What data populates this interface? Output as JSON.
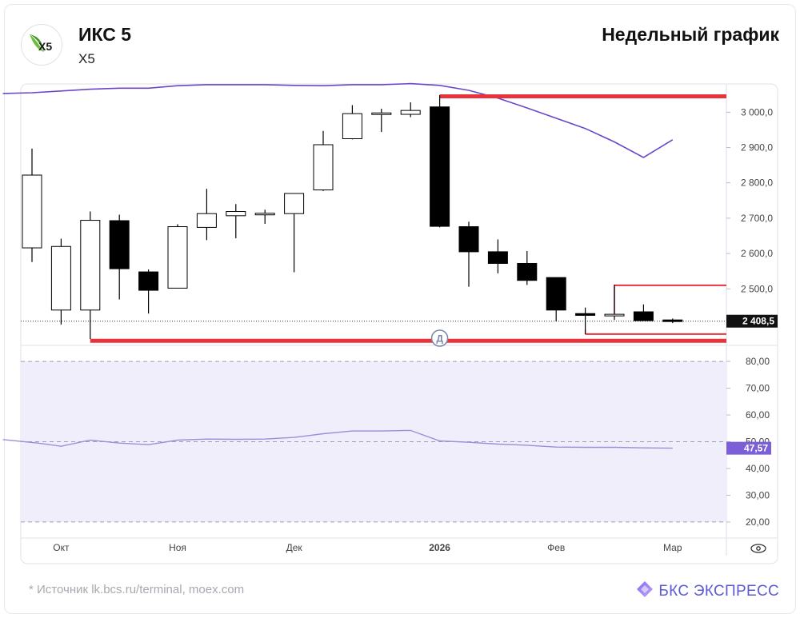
{
  "header": {
    "company": "ИКС 5",
    "ticker": "X5",
    "logo_text": "X5",
    "period": "Недельный график"
  },
  "footer": {
    "source": "* Источник lk.bcs.ru/terminal, moex.com",
    "brand": "БКС ЭКСПРЕСС"
  },
  "colors": {
    "bull": "#ffffff",
    "bear": "#000000",
    "ma": "#6a47c9",
    "level": "#e8323c",
    "rsi_fill": "#f1eefb",
    "rsi_line": "#9b8fd8",
    "rsi_badge": "#7b5fd6",
    "brand": "#5c5ad8"
  },
  "chart_data": [
    {
      "type": "candlestick",
      "title": "",
      "ylim": [
        2340,
        3080
      ],
      "y_ticks": [
        "3 000,0",
        "2 900,0",
        "2 800,0",
        "2 700,0",
        "2 600,0",
        "2 500,0"
      ],
      "y_tick_values": [
        3000,
        2900,
        2800,
        2700,
        2600,
        2500
      ],
      "x_labels": [
        "Окт",
        "Ноя",
        "Дек",
        "2026",
        "Фев",
        "Мар"
      ],
      "x_label_indices": [
        1,
        5,
        9,
        14,
        18,
        22
      ],
      "candles": [
        {
          "o": 2616,
          "h": 2897,
          "l": 2576,
          "c": 2822
        },
        {
          "o": 2440,
          "h": 2642,
          "l": 2399,
          "c": 2620
        },
        {
          "o": 2440,
          "h": 2719,
          "l": 2358,
          "c": 2694
        },
        {
          "o": 2693,
          "h": 2710,
          "l": 2470,
          "c": 2557
        },
        {
          "o": 2548,
          "h": 2555,
          "l": 2430,
          "c": 2496
        },
        {
          "o": 2502,
          "h": 2683,
          "l": 2502,
          "c": 2676
        },
        {
          "o": 2674,
          "h": 2783,
          "l": 2638,
          "c": 2713
        },
        {
          "o": 2707,
          "h": 2740,
          "l": 2643,
          "c": 2719
        },
        {
          "o": 2711,
          "h": 2724,
          "l": 2684,
          "c": 2714
        },
        {
          "o": 2713,
          "h": 2771,
          "l": 2547,
          "c": 2770
        },
        {
          "o": 2780,
          "h": 2947,
          "l": 2777,
          "c": 2908
        },
        {
          "o": 2925,
          "h": 3020,
          "l": 2923,
          "c": 2996
        },
        {
          "o": 2996,
          "h": 3010,
          "l": 2944,
          "c": 2998
        },
        {
          "o": 2994,
          "h": 3028,
          "l": 2986,
          "c": 3005
        },
        {
          "o": 3015,
          "h": 3048,
          "l": 2674,
          "c": 2677
        },
        {
          "o": 2676,
          "h": 2690,
          "l": 2506,
          "c": 2605
        },
        {
          "o": 2605,
          "h": 2640,
          "l": 2544,
          "c": 2572
        },
        {
          "o": 2572,
          "h": 2607,
          "l": 2511,
          "c": 2524
        },
        {
          "o": 2532,
          "h": 2532,
          "l": 2408,
          "c": 2440
        },
        {
          "o": 2430,
          "h": 2447,
          "l": 2372,
          "c": 2425
        },
        {
          "o": 2428,
          "h": 2512,
          "l": 2412,
          "c": 2428
        },
        {
          "o": 2435,
          "h": 2456,
          "l": 2409,
          "c": 2410
        },
        {
          "o": 2412,
          "h": 2416,
          "l": 2403,
          "c": 2409
        }
      ],
      "moving_average": [
        [
          -1,
          3053
        ],
        [
          0,
          3055
        ],
        [
          1,
          3060
        ],
        [
          2,
          3065
        ],
        [
          3,
          3068
        ],
        [
          4,
          3068
        ],
        [
          5,
          3075
        ],
        [
          6,
          3078
        ],
        [
          7,
          3078
        ],
        [
          8,
          3078
        ],
        [
          9,
          3076
        ],
        [
          10,
          3075
        ],
        [
          11,
          3078
        ],
        [
          12,
          3078
        ],
        [
          13,
          3081
        ],
        [
          14,
          3076
        ],
        [
          15,
          3062
        ],
        [
          16,
          3040
        ],
        [
          17,
          3012
        ],
        [
          18,
          2983
        ],
        [
          19,
          2954
        ],
        [
          20,
          2916
        ],
        [
          21,
          2872
        ],
        [
          22,
          2922
        ]
      ],
      "levels": [
        {
          "value": 3045,
          "from": 14,
          "to": 24.6,
          "thick": true
        },
        {
          "value": 2353,
          "from": 2,
          "to": 24.6,
          "thick": true
        },
        {
          "value": 2510,
          "from": 20,
          "to": 24.6,
          "thick": false
        },
        {
          "value": 2372,
          "from": 19,
          "to": 24.6,
          "thick": false
        }
      ],
      "marker_label": "Д",
      "marker_index": 14,
      "current_price": 2408.5,
      "current_price_label": "2 408,5"
    },
    {
      "type": "line",
      "title": "",
      "ylim": [
        14,
        86
      ],
      "y_ticks": [
        "80,00",
        "70,00",
        "60,00",
        "50,00",
        "40,00",
        "30,00",
        "20,00"
      ],
      "y_tick_values": [
        80,
        70,
        60,
        50,
        40,
        30,
        20
      ],
      "band": [
        20,
        80
      ],
      "midline": 50,
      "series": [
        {
          "values": [
            [
              -1,
              50.8
            ],
            [
              0.2,
              49.5
            ],
            [
              1,
              48.3
            ],
            [
              2,
              50.6
            ],
            [
              3,
              49.5
            ],
            [
              4,
              48.9
            ],
            [
              5,
              50.6
            ],
            [
              6,
              51.0
            ],
            [
              7,
              50.9
            ],
            [
              8,
              51.0
            ],
            [
              9,
              51.6
            ],
            [
              10,
              53.0
            ],
            [
              11,
              54.0
            ],
            [
              12,
              54.0
            ],
            [
              13,
              54.2
            ],
            [
              14,
              50.3
            ],
            [
              15,
              49.8
            ],
            [
              16,
              49.1
            ],
            [
              17,
              48.7
            ],
            [
              18,
              48.0
            ],
            [
              19,
              47.9
            ],
            [
              20,
              47.9
            ],
            [
              21,
              47.7
            ],
            [
              22,
              47.57
            ]
          ]
        }
      ],
      "current_value_label": "47,57"
    }
  ]
}
